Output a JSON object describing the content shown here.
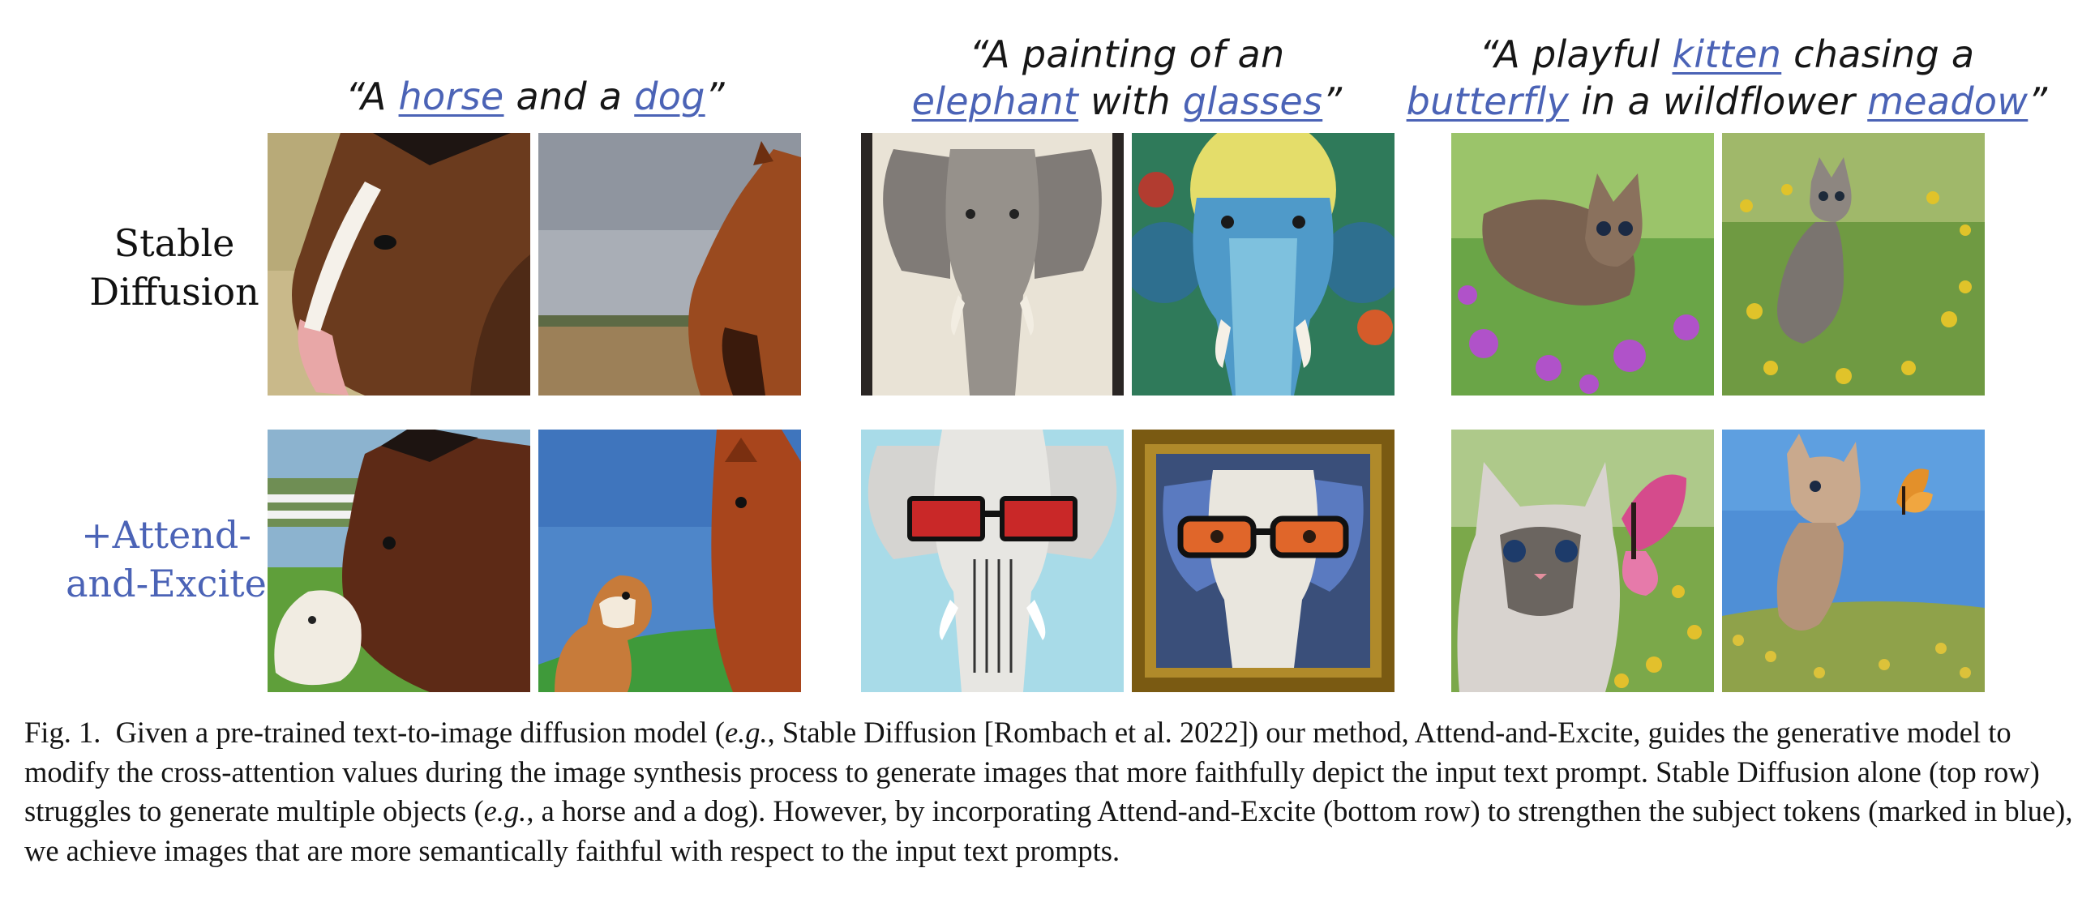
{
  "columns": [
    {
      "prompt_lines": [
        [
          {
            "t": "“A "
          },
          {
            "t": "horse",
            "tok": true
          },
          {
            "t": " and a "
          },
          {
            "t": "dog",
            "tok": true
          },
          {
            "t": "”"
          }
        ]
      ]
    },
    {
      "prompt_lines": [
        [
          {
            "t": "“A painting of an"
          }
        ],
        [
          {
            "t": "elephant",
            "tok": true
          },
          {
            "t": " with "
          },
          {
            "t": "glasses",
            "tok": true
          },
          {
            "t": "”"
          }
        ]
      ]
    },
    {
      "prompt_lines": [
        [
          {
            "t": "“A playful "
          },
          {
            "t": "kitten",
            "tok": true
          },
          {
            "t": " chasing a"
          }
        ],
        [
          {
            "t": "butterfly",
            "tok": true
          },
          {
            "t": " in a wildflower "
          },
          {
            "t": "meadow",
            "tok": true
          },
          {
            "t": "”"
          }
        ]
      ]
    }
  ],
  "rows": {
    "stable_diffusion": {
      "line1": "Stable",
      "line2": "Diffusion"
    },
    "attend_and_excite": {
      "line1": "+Attend-",
      "line2": "and-Excite"
    }
  },
  "caption": {
    "fig": "Fig. 1.",
    "s1": "Given a pre-trained text-to-image diffusion model (",
    "eg1": "e.g.",
    "s2": ", Stable Diffusion [Rombach et al. 2022]) our method, Attend-and-Excite, guides the generative model to modify the cross-attention values during the image synthesis process to generate images that more faithfully depict the input text prompt. Stable Diffusion alone (top row) struggles to generate multiple objects (",
    "eg2": "e.g.",
    "s3": ", a horse and a dog). However, by incorporating Attend-and-Excite (bottom row) to strengthen the subject tokens (marked in blue), we achieve images that are more semantically faithful with respect to the input text prompts."
  },
  "colors": {
    "token_blue": "#4b63b6"
  }
}
